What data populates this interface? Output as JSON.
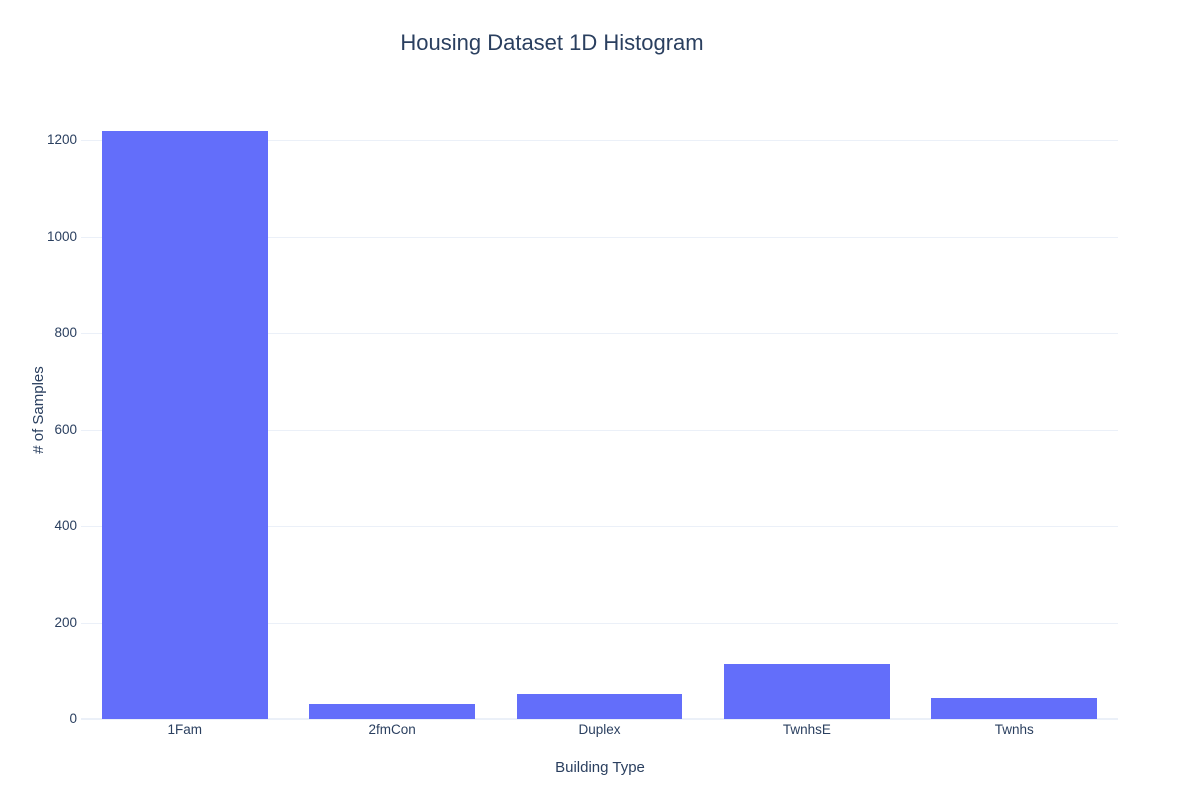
{
  "colors": {
    "bar": "#636efa",
    "font": "#2a3f5f",
    "grid": "#ebf0f8",
    "background": "#ffffff"
  },
  "chart_data": {
    "type": "bar",
    "title": "Housing Dataset 1D Histogram",
    "xlabel": "Building Type",
    "ylabel": "# of Samples",
    "categories": [
      "1Fam",
      "2fmCon",
      "Duplex",
      "TwnhsE",
      "Twnhs"
    ],
    "values": [
      1220,
      31,
      52,
      114,
      43
    ],
    "yticks": [
      0,
      200,
      400,
      600,
      800,
      1000,
      1200
    ],
    "ylim": [
      0,
      1284
    ],
    "grid": true,
    "legend_position": "none",
    "bar_width_fraction": 0.8
  }
}
